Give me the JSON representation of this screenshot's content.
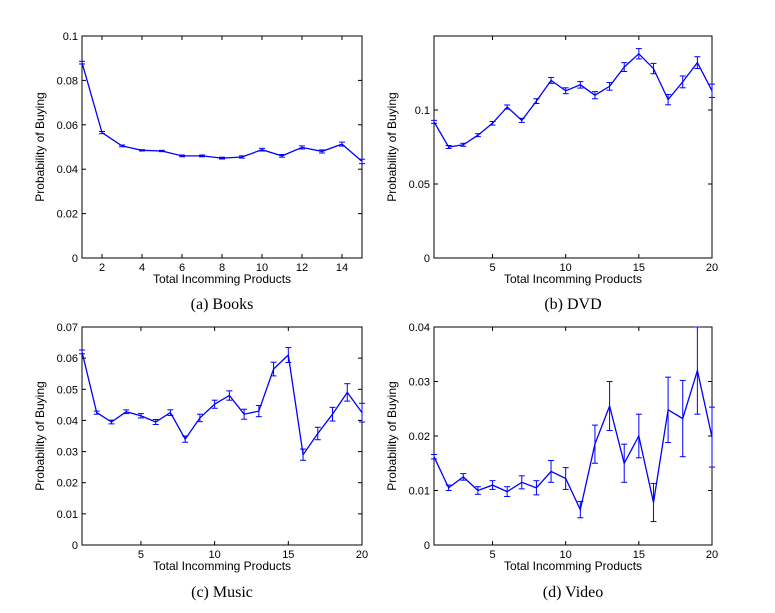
{
  "colors": {
    "series": "#0000ff",
    "axis": "#000000"
  },
  "chart_data": [
    {
      "type": "line",
      "caption": "(a) Books",
      "xlabel": "Total Incomming Products",
      "ylabel": "Probability of Buying",
      "xlim": [
        1,
        15
      ],
      "ylim": [
        0,
        0.1
      ],
      "xticks": [
        2,
        4,
        6,
        8,
        10,
        12,
        14
      ],
      "xtick_labels": [
        "2",
        "4",
        "6",
        "8",
        "10",
        "12",
        "14"
      ],
      "yticks": [
        0,
        0.02,
        0.04,
        0.06,
        0.08,
        0.1
      ],
      "ytick_labels": [
        "0",
        "0.02",
        "0.04",
        "0.06",
        "0.08",
        "0.1"
      ],
      "series": [
        {
          "x": [
            1,
            2,
            3,
            4,
            5,
            6,
            7,
            8,
            9,
            10,
            11,
            12,
            13,
            14,
            15
          ],
          "y": [
            0.088,
            0.0565,
            0.0505,
            0.0485,
            0.0482,
            0.046,
            0.046,
            0.045,
            0.0455,
            0.0488,
            0.046,
            0.0498,
            0.048,
            0.0513,
            0.0435
          ],
          "err": [
            0.0006,
            0.0005,
            0.0004,
            0.0003,
            0.0003,
            0.0004,
            0.0004,
            0.0004,
            0.0005,
            0.0006,
            0.0006,
            0.0007,
            0.0007,
            0.0009,
            0.001
          ]
        }
      ]
    },
    {
      "type": "line",
      "caption": "(b) DVD",
      "xlabel": "Total Incomming Products",
      "ylabel": "Probability of Buying",
      "xlim": [
        1,
        20
      ],
      "ylim": [
        0,
        0.15
      ],
      "xticks": [
        5,
        10,
        15,
        20
      ],
      "xtick_labels": [
        "5",
        "10",
        "15",
        "20"
      ],
      "yticks": [
        0,
        0.05,
        0.1
      ],
      "ytick_labels": [
        "0",
        "0.05",
        "0.1"
      ],
      "series": [
        {
          "x": [
            1,
            2,
            3,
            4,
            5,
            6,
            7,
            8,
            9,
            10,
            11,
            12,
            13,
            14,
            15,
            16,
            17,
            18,
            19,
            20
          ],
          "y": [
            0.092,
            0.075,
            0.0765,
            0.083,
            0.091,
            0.102,
            0.093,
            0.106,
            0.12,
            0.113,
            0.117,
            0.11,
            0.116,
            0.129,
            0.138,
            0.128,
            0.107,
            0.119,
            0.132,
            0.113
          ],
          "err": [
            0.001,
            0.001,
            0.001,
            0.001,
            0.0012,
            0.0014,
            0.0014,
            0.0016,
            0.002,
            0.002,
            0.0022,
            0.0024,
            0.0026,
            0.003,
            0.0035,
            0.0035,
            0.0035,
            0.004,
            0.004,
            0.0045
          ]
        }
      ]
    },
    {
      "type": "line",
      "caption": "(c) Music",
      "xlabel": "Total Incomming Products",
      "ylabel": "Probability of Buying",
      "xlim": [
        1,
        20
      ],
      "ylim": [
        0,
        0.07
      ],
      "xticks": [
        5,
        10,
        15,
        20
      ],
      "xtick_labels": [
        "5",
        "10",
        "15",
        "20"
      ],
      "yticks": [
        0,
        0.01,
        0.02,
        0.03,
        0.04,
        0.05,
        0.06,
        0.07
      ],
      "ytick_labels": [
        "0",
        "0.01",
        "0.02",
        "0.03",
        "0.04",
        "0.05",
        "0.06",
        "0.07"
      ],
      "series": [
        {
          "x": [
            1,
            2,
            3,
            4,
            5,
            6,
            7,
            8,
            9,
            10,
            11,
            12,
            13,
            14,
            15,
            16,
            17,
            18,
            19,
            20
          ],
          "y": [
            0.062,
            0.0425,
            0.0395,
            0.0428,
            0.0415,
            0.0395,
            0.0425,
            0.034,
            0.0408,
            0.0452,
            0.048,
            0.042,
            0.043,
            0.0565,
            0.061,
            0.029,
            0.0358,
            0.042,
            0.049,
            0.0425
          ],
          "err": [
            0.0006,
            0.0005,
            0.0006,
            0.0006,
            0.0007,
            0.0008,
            0.0009,
            0.001,
            0.0012,
            0.0013,
            0.0015,
            0.0016,
            0.0018,
            0.0022,
            0.0024,
            0.0018,
            0.002,
            0.0022,
            0.0028,
            0.003
          ]
        }
      ]
    },
    {
      "type": "line",
      "caption": "(d) Video",
      "xlabel": "Total Incomming Products",
      "ylabel": "Probability of Buying",
      "xlim": [
        1,
        20
      ],
      "ylim": [
        0,
        0.04
      ],
      "xticks": [
        5,
        10,
        15,
        20
      ],
      "xtick_labels": [
        "5",
        "10",
        "15",
        "20"
      ],
      "yticks": [
        0,
        0.01,
        0.02,
        0.03,
        0.04
      ],
      "ytick_labels": [
        "0",
        "0.01",
        "0.02",
        "0.03",
        "0.04"
      ],
      "series": [
        {
          "x": [
            1,
            2,
            3,
            4,
            5,
            6,
            7,
            8,
            9,
            10,
            11,
            12,
            13,
            14,
            15,
            16,
            17,
            18,
            19,
            20
          ],
          "y": [
            0.0162,
            0.0105,
            0.0125,
            0.01,
            0.011,
            0.0098,
            0.0115,
            0.0105,
            0.0135,
            0.0122,
            0.0065,
            0.0185,
            0.0255,
            0.015,
            0.02,
            0.0078,
            0.0248,
            0.0232,
            0.032,
            0.0198
          ],
          "err": [
            0.0004,
            0.0005,
            0.0006,
            0.0007,
            0.0008,
            0.0009,
            0.0012,
            0.0013,
            0.002,
            0.002,
            0.0015,
            0.0035,
            0.0045,
            0.0035,
            0.004,
            0.0035,
            0.006,
            0.007,
            0.008,
            0.0055
          ]
        }
      ]
    }
  ]
}
